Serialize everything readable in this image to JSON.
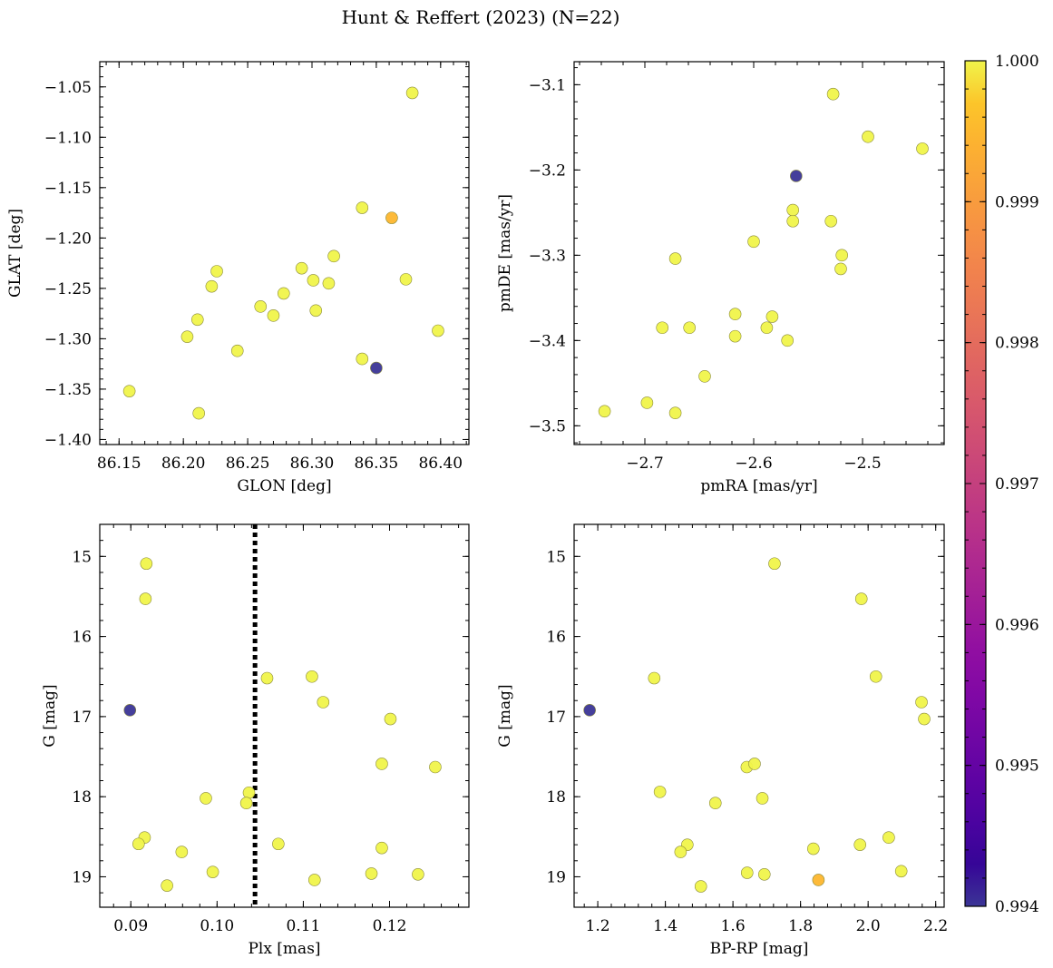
{
  "chart_data": {
    "title": "Hunt & Reffert (2023) (N=22)",
    "colorbar": {
      "range": [
        0.994,
        1.0
      ],
      "ticks": [
        0.994,
        0.995,
        0.996,
        0.997,
        0.998,
        0.999,
        1.0
      ],
      "tick_labels": [
        "0.994",
        "0.995",
        "0.996",
        "0.997",
        "0.998",
        "0.999",
        "1.000"
      ],
      "colormap": "plasma"
    },
    "colors": {
      "low": "#3b3596",
      "high": "#f0f44a"
    },
    "panels": [
      {
        "id": "glon-glat",
        "type": "scatter",
        "xlabel": "GLON [deg]",
        "ylabel": "GLAT [deg]",
        "xlim": [
          86.135,
          86.422
        ],
        "ylim": [
          -1.405,
          -1.025
        ],
        "invert_y": false,
        "xticks": [
          86.15,
          86.2,
          86.25,
          86.3,
          86.35,
          86.4
        ],
        "xtick_labels": [
          "86.15",
          "86.20",
          "86.25",
          "86.30",
          "86.35",
          "86.40"
        ],
        "yticks": [
          -1.4,
          -1.35,
          -1.3,
          -1.25,
          -1.2,
          -1.15,
          -1.1,
          -1.05
        ],
        "ytick_labels": [
          "−1.40",
          "−1.35",
          "−1.30",
          "−1.25",
          "−1.20",
          "−1.15",
          "−1.10",
          "−1.05"
        ],
        "x": [
          86.378,
          86.362,
          86.339,
          86.317,
          86.292,
          86.313,
          86.301,
          86.303,
          86.373,
          86.398,
          86.339,
          86.35,
          86.278,
          86.27,
          86.26,
          86.242,
          86.226,
          86.222,
          86.211,
          86.203,
          86.158,
          86.212
        ],
        "y": [
          -1.056,
          -1.18,
          -1.17,
          -1.218,
          -1.23,
          -1.245,
          -1.242,
          -1.272,
          -1.241,
          -1.292,
          -1.32,
          -1.329,
          -1.255,
          -1.277,
          -1.268,
          -1.312,
          -1.233,
          -1.248,
          -1.281,
          -1.298,
          -1.352,
          -1.374
        ],
        "c": [
          1.0,
          0.9993,
          1.0,
          1.0,
          1.0,
          1.0,
          1.0,
          1.0,
          1.0,
          1.0,
          1.0,
          0.994,
          1.0,
          1.0,
          1.0,
          1.0,
          1.0,
          1.0,
          1.0,
          1.0,
          1.0,
          1.0
        ]
      },
      {
        "id": "pmra-pmde",
        "type": "scatter",
        "xlabel": "pmRA [mas/yr]",
        "ylabel": "pmDE [mas/yr]",
        "xlim": [
          -2.765,
          -2.425
        ],
        "ylim": [
          -3.522,
          -3.073
        ],
        "invert_y": false,
        "xticks": [
          -2.7,
          -2.6,
          -2.5
        ],
        "xtick_labels": [
          "−2.7",
          "−2.6",
          "−2.5"
        ],
        "yticks": [
          -3.5,
          -3.4,
          -3.3,
          -3.2,
          -3.1
        ],
        "ytick_labels": [
          "−3.5",
          "−3.4",
          "−3.3",
          "−3.2",
          "−3.1"
        ],
        "x": [
          -2.527,
          -2.495,
          -2.445,
          -2.561,
          -2.564,
          -2.564,
          -2.529,
          -2.6,
          -2.519,
          -2.52,
          -2.672,
          -2.684,
          -2.659,
          -2.617,
          -2.583,
          -2.588,
          -2.617,
          -2.569,
          -2.645,
          -2.698,
          -2.737,
          -2.672
        ],
        "y": [
          -3.111,
          -3.161,
          -3.175,
          -3.207,
          -3.247,
          -3.26,
          -3.26,
          -3.284,
          -3.3,
          -3.316,
          -3.304,
          -3.385,
          -3.385,
          -3.369,
          -3.372,
          -3.385,
          -3.395,
          -3.4,
          -3.442,
          -3.473,
          -3.483,
          -3.485
        ],
        "c": [
          1.0,
          1.0,
          1.0,
          0.994,
          1.0,
          1.0,
          1.0,
          1.0,
          1.0,
          1.0,
          1.0,
          1.0,
          1.0,
          1.0,
          1.0,
          1.0,
          1.0,
          1.0,
          1.0,
          1.0,
          1.0,
          1.0
        ]
      },
      {
        "id": "plx-g",
        "type": "scatter",
        "xlabel": "Plx [mas]",
        "ylabel": "G [mag]",
        "xlim": [
          0.0864,
          0.1292
        ],
        "ylim": [
          19.38,
          14.6
        ],
        "invert_y": true,
        "xticks": [
          0.09,
          0.1,
          0.11,
          0.12
        ],
        "xtick_labels": [
          "0.09",
          "0.10",
          "0.11",
          "0.12"
        ],
        "yticks": [
          15,
          16,
          17,
          18,
          19
        ],
        "ytick_labels": [
          "15",
          "16",
          "17",
          "18",
          "19"
        ],
        "vline": 0.1044,
        "x": [
          0.0918,
          0.0917,
          0.0899,
          0.1058,
          0.111,
          0.1123,
          0.1201,
          0.1191,
          0.1253,
          0.1037,
          0.0987,
          0.1034,
          0.0916,
          0.0909,
          0.0959,
          0.1071,
          0.1191,
          0.0995,
          0.1179,
          0.1233,
          0.0942,
          0.1113
        ],
        "y": [
          15.09,
          15.53,
          16.92,
          16.52,
          16.5,
          16.82,
          17.03,
          17.59,
          17.63,
          17.95,
          18.02,
          18.08,
          18.51,
          18.59,
          18.69,
          18.59,
          18.64,
          18.94,
          18.96,
          18.97,
          19.11,
          19.04
        ],
        "c": [
          1.0,
          1.0,
          0.994,
          1.0,
          1.0,
          1.0,
          1.0,
          1.0,
          1.0,
          1.0,
          1.0,
          1.0,
          1.0,
          1.0,
          1.0,
          1.0,
          1.0,
          1.0,
          1.0,
          1.0,
          1.0,
          1.0
        ]
      },
      {
        "id": "bprp-g",
        "type": "scatter",
        "xlabel": "BP-RP [mag]",
        "ylabel": "G [mag]",
        "xlim": [
          1.13,
          2.225
        ],
        "ylim": [
          19.38,
          14.6
        ],
        "invert_y": true,
        "xticks": [
          1.2,
          1.4,
          1.6,
          1.8,
          2.0,
          2.2
        ],
        "xtick_labels": [
          "1.2",
          "1.4",
          "1.6",
          "1.8",
          "2.0",
          "2.2"
        ],
        "yticks": [
          15,
          16,
          17,
          18,
          19
        ],
        "ytick_labels": [
          "15",
          "16",
          "17",
          "18",
          "19"
        ],
        "x": [
          1.723,
          1.98,
          1.176,
          1.367,
          2.023,
          2.158,
          2.166,
          1.641,
          1.664,
          1.384,
          1.687,
          1.548,
          2.061,
          1.976,
          1.465,
          1.445,
          1.838,
          2.098,
          1.642,
          1.693,
          1.505,
          1.853
        ],
        "y": [
          15.09,
          15.53,
          16.92,
          16.52,
          16.5,
          16.82,
          17.03,
          17.63,
          17.59,
          17.94,
          18.02,
          18.08,
          18.51,
          18.6,
          18.6,
          18.69,
          18.65,
          18.93,
          18.95,
          18.97,
          19.12,
          19.04
        ],
        "c": [
          1.0,
          1.0,
          0.994,
          1.0,
          1.0,
          1.0,
          1.0,
          1.0,
          1.0,
          1.0,
          1.0,
          1.0,
          1.0,
          1.0,
          1.0,
          1.0,
          1.0,
          1.0,
          1.0,
          1.0,
          1.0,
          0.9993
        ]
      }
    ]
  }
}
